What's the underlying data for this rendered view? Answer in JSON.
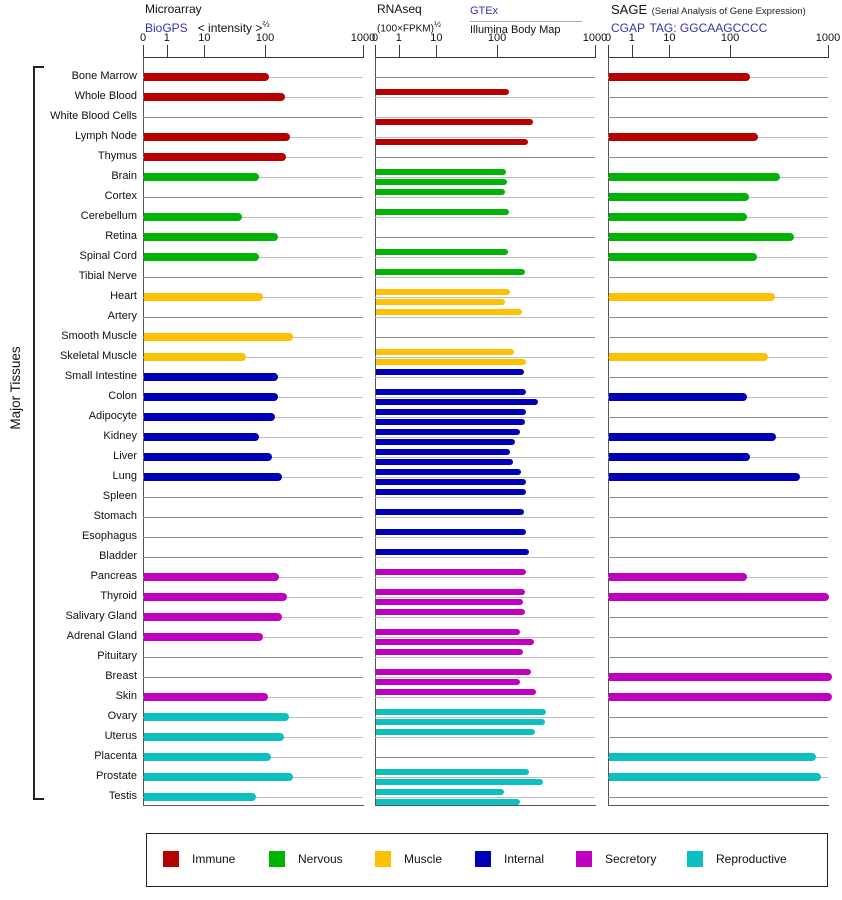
{
  "header": {
    "microarray": {
      "title": "Microarray",
      "link": "BioGPS",
      "scale_label": "< intensity >",
      "scale_sup": "⅔"
    },
    "rnaseq": {
      "title": "RNAseq",
      "scale_label": "(100×FPKM)",
      "scale_sup": "½",
      "link": "GTEx",
      "source2": "Illumina Body Map"
    },
    "sage": {
      "title": "SAGE",
      "subtitle": "(Serial Analysis of Gene Expression)",
      "link": "CGAP",
      "tag": "TAG: GGCAAGCCCC"
    }
  },
  "left_label": "Major Tissues",
  "legend": [
    {
      "name": "Immune",
      "color": "#b80000"
    },
    {
      "name": "Nervous",
      "color": "#00b305"
    },
    {
      "name": "Muscle",
      "color": "#fdc104"
    },
    {
      "name": "Internal",
      "color": "#0000b8"
    },
    {
      "name": "Secretory",
      "color": "#bf00bf"
    },
    {
      "name": "Reproductive",
      "color": "#0cc0c0"
    }
  ],
  "chart_data": {
    "type": "bar",
    "orientation": "horizontal",
    "axis": {
      "ticks": [
        0,
        1,
        10,
        100,
        1000
      ],
      "tick_positions_pct": [
        0,
        10.8,
        27.9,
        55.5,
        100
      ]
    },
    "categories": [
      "Bone Marrow",
      "Whole Blood",
      "White Blood Cells",
      "Lymph Node",
      "Thymus",
      "Brain",
      "Cortex",
      "Cerebellum",
      "Retina",
      "Spinal Cord",
      "Tibial Nerve",
      "Heart",
      "Artery",
      "Smooth Muscle",
      "Skeletal Muscle",
      "Small Intestine",
      "Colon",
      "Adipocyte",
      "Kidney",
      "Liver",
      "Lung",
      "Spleen",
      "Stomach",
      "Esophagus",
      "Bladder",
      "Pancreas",
      "Thyroid",
      "Salivary Gland",
      "Adrenal Gland",
      "Pituitary",
      "Breast",
      "Skin",
      "Ovary",
      "Uterus",
      "Placenta",
      "Prostate",
      "Testis"
    ],
    "groups": [
      "Immune",
      "Immune",
      "Immune",
      "Immune",
      "Immune",
      "Nervous",
      "Nervous",
      "Nervous",
      "Nervous",
      "Nervous",
      "Nervous",
      "Muscle",
      "Muscle",
      "Muscle",
      "Muscle",
      "Internal",
      "Internal",
      "Internal",
      "Internal",
      "Internal",
      "Internal",
      "Internal",
      "Internal",
      "Internal",
      "Internal",
      "Secretory",
      "Secretory",
      "Secretory",
      "Secretory",
      "Secretory",
      "Secretory",
      "Secretory",
      "Reproductive",
      "Reproductive",
      "Reproductive",
      "Reproductive",
      "Reproductive"
    ],
    "series": [
      {
        "name": "Microarray (BioGPS)",
        "panel": "microarray",
        "values": [
          125,
          275,
          null,
          320,
          280,
          90,
          null,
          65,
          210,
          90,
          null,
          95,
          null,
          345,
          70,
          205,
          205,
          180,
          90,
          150,
          250,
          null,
          null,
          null,
          null,
          215,
          290,
          250,
          95,
          null,
          null,
          115,
          310,
          260,
          145,
          345,
          85
        ]
      },
      {
        "name": "RNAseq (GTEx)",
        "panel": "rnaseq",
        "values": [
          null,
          200,
          null,
          null,
          null,
          175,
          160,
          200,
          null,
          190,
          345,
          210,
          320,
          null,
          245,
          340,
          355,
          355,
          305,
          210,
          310,
          360,
          340,
          360,
          385,
          355,
          350,
          350,
          305,
          325,
          400,
          450,
          540,
          435,
          null,
          385,
          155
        ]
      },
      {
        "name": "RNAseq (Illumina Body Map)",
        "panel": "rnaseq",
        "values": [
          null,
          null,
          420,
          375,
          null,
          180,
          null,
          null,
          null,
          null,
          null,
          165,
          null,
          null,
          355,
          null,
          465,
          350,
          255,
          235,
          360,
          null,
          null,
          null,
          null,
          null,
          330,
          null,
          430,
          null,
          300,
          null,
          530,
          null,
          null,
          515,
          300
        ]
      },
      {
        "name": "SAGE (CGAP)",
        "panel": "sage",
        "values": [
          270,
          null,
          null,
          345,
          null,
          545,
          260,
          250,
          675,
          335,
          null,
          505,
          null,
          null,
          440,
          null,
          250,
          null,
          510,
          270,
          730,
          null,
          null,
          null,
          null,
          250,
          1000,
          null,
          null,
          null,
          1030,
          1030,
          null,
          null,
          880,
          925,
          null
        ]
      }
    ]
  }
}
